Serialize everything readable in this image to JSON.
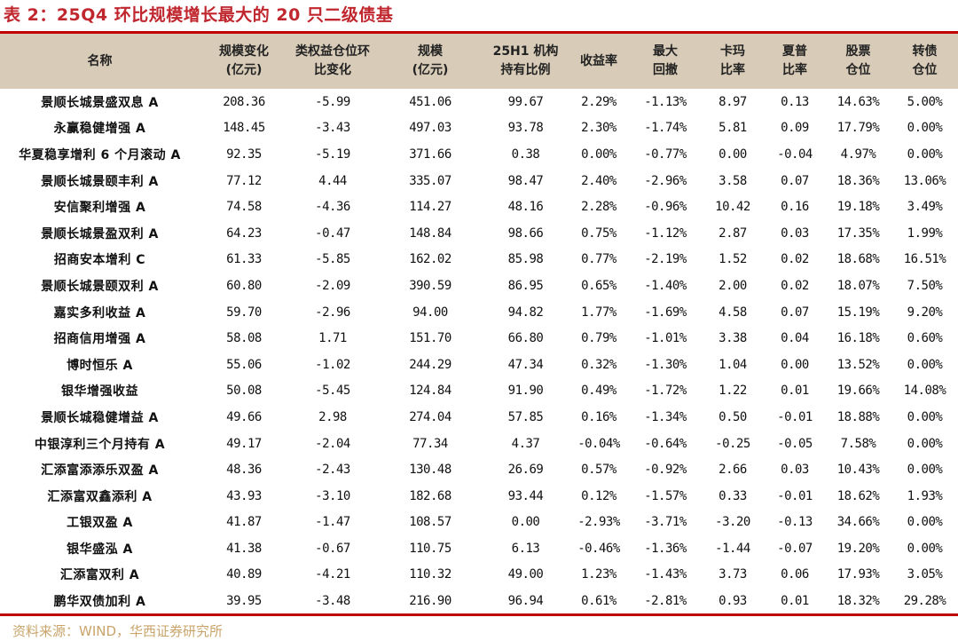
{
  "title": "表 2：25Q4 环比规模增长最大的 20 只二级债基",
  "headers": [
    [
      "名称"
    ],
    [
      "规模变化",
      "(亿元)"
    ],
    [
      "类权益仓位环",
      "比变化"
    ],
    [
      "规模",
      "(亿元)"
    ],
    [
      "25H1 机构",
      "持有比例"
    ],
    [
      "收益率"
    ],
    [
      "最大",
      "回撤"
    ],
    [
      "卡玛",
      "比率"
    ],
    [
      "夏普",
      "比率"
    ],
    [
      "股票",
      "仓位"
    ],
    [
      "转债",
      "仓位"
    ]
  ],
  "rows": [
    [
      "景顺长城景盛双息 A",
      "208.36",
      "-5.99",
      "451.06",
      "99.67",
      "2.29%",
      "-1.13%",
      "8.97",
      "0.13",
      "14.63%",
      "5.00%"
    ],
    [
      "永赢稳健增强 A",
      "148.45",
      "-3.43",
      "497.03",
      "93.78",
      "2.30%",
      "-1.74%",
      "5.81",
      "0.09",
      "17.79%",
      "0.00%"
    ],
    [
      "华夏稳享增利 6 个月滚动 A",
      "92.35",
      "-5.19",
      "371.66",
      "0.38",
      "0.00%",
      "-0.77%",
      "0.00",
      "-0.04",
      "4.97%",
      "0.00%"
    ],
    [
      "景顺长城景颐丰利 A",
      "77.12",
      "4.44",
      "335.07",
      "98.47",
      "2.40%",
      "-2.96%",
      "3.58",
      "0.07",
      "18.36%",
      "13.06%"
    ],
    [
      "安信聚利增强 A",
      "74.58",
      "-4.36",
      "114.27",
      "48.16",
      "2.28%",
      "-0.96%",
      "10.42",
      "0.16",
      "19.18%",
      "3.49%"
    ],
    [
      "景顺长城景盈双利 A",
      "64.23",
      "-0.47",
      "148.84",
      "98.66",
      "0.75%",
      "-1.12%",
      "2.87",
      "0.03",
      "17.35%",
      "1.99%"
    ],
    [
      "招商安本增利 C",
      "61.33",
      "-5.85",
      "162.02",
      "85.98",
      "0.77%",
      "-2.19%",
      "1.52",
      "0.02",
      "18.68%",
      "16.51%"
    ],
    [
      "景顺长城景颐双利 A",
      "60.80",
      "-2.09",
      "390.59",
      "86.95",
      "0.65%",
      "-1.40%",
      "2.00",
      "0.02",
      "18.07%",
      "7.50%"
    ],
    [
      "嘉实多利收益 A",
      "59.70",
      "-2.96",
      "94.00",
      "94.82",
      "1.77%",
      "-1.69%",
      "4.58",
      "0.07",
      "15.19%",
      "9.20%"
    ],
    [
      "招商信用增强 A",
      "58.08",
      "1.71",
      "151.70",
      "66.80",
      "0.79%",
      "-1.01%",
      "3.38",
      "0.04",
      "16.18%",
      "0.60%"
    ],
    [
      "博时恒乐 A",
      "55.06",
      "-1.02",
      "244.29",
      "47.34",
      "0.32%",
      "-1.30%",
      "1.04",
      "0.00",
      "13.52%",
      "0.00%"
    ],
    [
      "银华增强收益",
      "50.08",
      "-5.45",
      "124.84",
      "91.90",
      "0.49%",
      "-1.72%",
      "1.22",
      "0.01",
      "19.66%",
      "14.08%"
    ],
    [
      "景顺长城稳健增益 A",
      "49.66",
      "2.98",
      "274.04",
      "57.85",
      "0.16%",
      "-1.34%",
      "0.50",
      "-0.01",
      "18.88%",
      "0.00%"
    ],
    [
      "中银淳利三个月持有 A",
      "49.17",
      "-2.04",
      "77.34",
      "4.37",
      "-0.04%",
      "-0.64%",
      "-0.25",
      "-0.05",
      "7.58%",
      "0.00%"
    ],
    [
      "汇添富添添乐双盈 A",
      "48.36",
      "-2.43",
      "130.48",
      "26.69",
      "0.57%",
      "-0.92%",
      "2.66",
      "0.03",
      "10.43%",
      "0.00%"
    ],
    [
      "汇添富双鑫添利 A",
      "43.93",
      "-3.10",
      "182.68",
      "93.44",
      "0.12%",
      "-1.57%",
      "0.33",
      "-0.01",
      "18.62%",
      "1.93%"
    ],
    [
      "工银双盈 A",
      "41.87",
      "-1.47",
      "108.57",
      "0.00",
      "-2.93%",
      "-3.71%",
      "-3.20",
      "-0.13",
      "34.66%",
      "0.00%"
    ],
    [
      "银华盛泓 A",
      "41.38",
      "-0.67",
      "110.75",
      "6.13",
      "-0.46%",
      "-1.36%",
      "-1.44",
      "-0.07",
      "19.20%",
      "0.00%"
    ],
    [
      "汇添富双利 A",
      "40.89",
      "-4.21",
      "110.32",
      "49.00",
      "1.23%",
      "-1.43%",
      "3.73",
      "0.06",
      "17.93%",
      "3.05%"
    ],
    [
      "鹏华双债加利 A",
      "39.95",
      "-3.48",
      "216.90",
      "96.94",
      "0.61%",
      "-2.81%",
      "0.93",
      "0.01",
      "18.32%",
      "29.28%"
    ]
  ],
  "source": "资料来源：WIND，华西证券研究所",
  "colors": {
    "accent": "#c00000",
    "header_bg": "#d8ccb8",
    "source": "#c9a46a"
  }
}
